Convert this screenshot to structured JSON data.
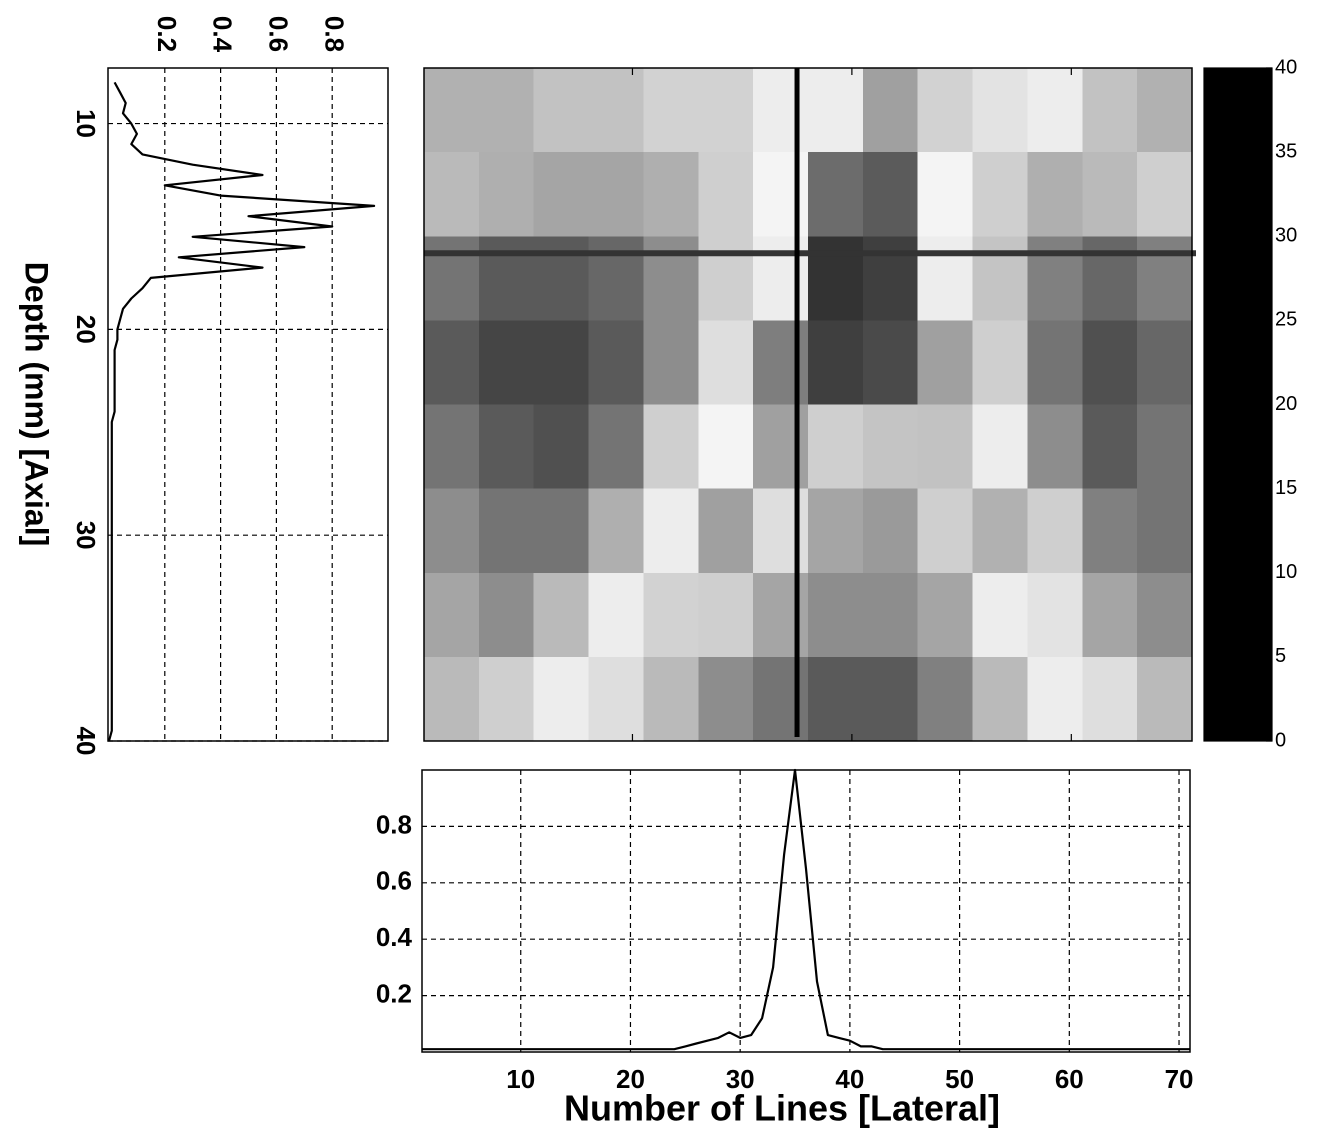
{
  "chart_data": [
    {
      "type": "heatmap",
      "xlim": [
        1,
        71
      ],
      "ylim": [
        7.3,
        40
      ],
      "xticks": [
        20,
        40,
        60
      ],
      "values": [
        [
          29,
          29,
          28,
          28,
          27,
          27,
          24,
          24,
          30,
          27,
          26,
          24,
          28,
          29
        ],
        [
          18,
          17,
          16,
          16,
          17,
          20,
          25,
          33,
          34,
          25,
          20,
          17,
          18,
          20
        ],
        [
          12,
          10,
          10,
          11,
          14,
          20,
          24,
          37,
          36,
          24,
          19,
          13,
          11,
          13
        ],
        [
          10,
          8,
          8,
          10,
          14,
          22,
          32,
          36,
          35,
          30,
          20,
          12,
          9,
          11
        ],
        [
          12,
          10,
          9,
          12,
          20,
          25,
          30,
          20,
          19,
          28,
          24,
          14,
          10,
          12
        ],
        [
          14,
          12,
          12,
          17,
          24,
          30,
          22,
          16,
          15,
          20,
          29,
          20,
          13,
          12
        ],
        [
          16,
          14,
          18,
          24,
          27,
          20,
          16,
          14,
          14,
          16,
          24,
          26,
          16,
          14
        ],
        [
          18,
          20,
          24,
          22,
          18,
          14,
          12,
          10,
          10,
          13,
          18,
          24,
          22,
          18
        ]
      ],
      "crosshair_x": 35,
      "crosshair_y": 16.3,
      "colorbar_lim": [
        0,
        40
      ],
      "colorbar_ticks": [
        0,
        5,
        10,
        15,
        20,
        25,
        30,
        35,
        40
      ],
      "colormap": [
        {
          "value": 0,
          "color": "#000000"
        },
        {
          "value": 5,
          "color": "#262626"
        },
        {
          "value": 10,
          "color": "#5a5a5a"
        },
        {
          "value": 15,
          "color": "#9a9a9a"
        },
        {
          "value": 20,
          "color": "#cfcfcf"
        },
        {
          "value": 25,
          "color": "#f4f4f4"
        },
        {
          "value": 30,
          "color": "#a0a0a0"
        },
        {
          "value": 35,
          "color": "#4a4a4a"
        },
        {
          "value": 40,
          "color": "#111111"
        }
      ]
    },
    {
      "type": "line",
      "orientation": "vertical",
      "ylabel": "Depth (mm) [Axial]",
      "color": "#000000",
      "grid": true,
      "x": [
        8,
        8.5,
        9,
        9.5,
        10,
        10.5,
        11,
        11.5,
        12,
        12.5,
        13,
        13.5,
        14,
        14.5,
        15,
        15.5,
        16,
        16.5,
        17,
        17.5,
        18,
        18.5,
        19,
        19.5,
        20,
        20.5,
        21,
        21.5,
        22,
        22.5,
        23,
        23.5,
        24,
        24.5,
        25,
        25.5,
        26,
        26.5,
        27,
        27.5,
        28,
        28.5,
        29,
        29.5,
        30,
        30.5,
        31,
        31.5,
        32,
        32.5,
        33,
        33.5,
        34,
        34.5,
        35,
        35.5,
        36,
        36.5,
        37,
        37.5,
        38,
        38.5,
        39,
        39.5,
        40
      ],
      "values": [
        0.02,
        0.04,
        0.06,
        0.05,
        0.08,
        0.1,
        0.08,
        0.12,
        0.3,
        0.55,
        0.2,
        0.4,
        0.95,
        0.5,
        0.8,
        0.3,
        0.7,
        0.25,
        0.55,
        0.15,
        0.12,
        0.08,
        0.05,
        0.04,
        0.03,
        0.03,
        0.02,
        0.02,
        0.02,
        0.02,
        0.02,
        0.02,
        0.02,
        0.01,
        0.01,
        0.01,
        0.01,
        0.01,
        0.01,
        0.01,
        0.01,
        0.01,
        0.01,
        0.01,
        0.01,
        0.01,
        0.01,
        0.01,
        0.01,
        0.01,
        0.01,
        0.01,
        0.01,
        0.01,
        0.01,
        0.01,
        0.01,
        0.01,
        0.01,
        0.01,
        0.01,
        0.01,
        0.01,
        0.01,
        0
      ],
      "xlim": [
        7.3,
        40
      ],
      "xticks": [
        10,
        20,
        30,
        40
      ],
      "ylim": [
        0,
        1
      ],
      "yticks": [
        0.2,
        0.4,
        0.6,
        0.8
      ]
    },
    {
      "type": "line",
      "xlabel": "Number of Lines [Lateral]",
      "color": "#000000",
      "grid": true,
      "x": [
        1,
        2,
        3,
        4,
        5,
        6,
        7,
        8,
        9,
        10,
        11,
        12,
        13,
        14,
        15,
        16,
        17,
        18,
        19,
        20,
        21,
        22,
        23,
        24,
        25,
        26,
        27,
        28,
        29,
        30,
        31,
        32,
        33,
        34,
        35,
        36,
        37,
        38,
        39,
        40,
        41,
        42,
        43,
        44,
        45,
        46,
        47,
        48,
        49,
        50,
        51,
        52,
        53,
        54,
        55,
        56,
        57,
        58,
        59,
        60,
        61,
        62,
        63,
        64,
        65,
        66,
        67,
        68,
        69,
        70,
        71
      ],
      "values": [
        0.01,
        0.01,
        0.01,
        0.01,
        0.01,
        0.01,
        0.01,
        0.01,
        0.01,
        0.01,
        0.01,
        0.01,
        0.01,
        0.01,
        0.01,
        0.01,
        0.01,
        0.01,
        0.01,
        0.01,
        0.01,
        0.01,
        0.01,
        0.01,
        0.02,
        0.03,
        0.04,
        0.05,
        0.07,
        0.05,
        0.06,
        0.12,
        0.3,
        0.7,
        1,
        0.65,
        0.25,
        0.06,
        0.05,
        0.04,
        0.02,
        0.02,
        0.01,
        0.01,
        0.01,
        0.01,
        0.01,
        0.01,
        0.01,
        0.01,
        0.01,
        0.01,
        0.01,
        0.01,
        0.01,
        0.01,
        0.01,
        0.01,
        0.01,
        0.01,
        0.01,
        0.01,
        0.01,
        0.01,
        0.01,
        0.01,
        0.01,
        0.01,
        0.01,
        0.01,
        0.01
      ],
      "xlim": [
        1,
        71
      ],
      "xticks": [
        10,
        20,
        30,
        40,
        50,
        60,
        70
      ],
      "ylim": [
        0,
        1
      ],
      "yticks": [
        0.2,
        0.4,
        0.6,
        0.8
      ]
    }
  ]
}
